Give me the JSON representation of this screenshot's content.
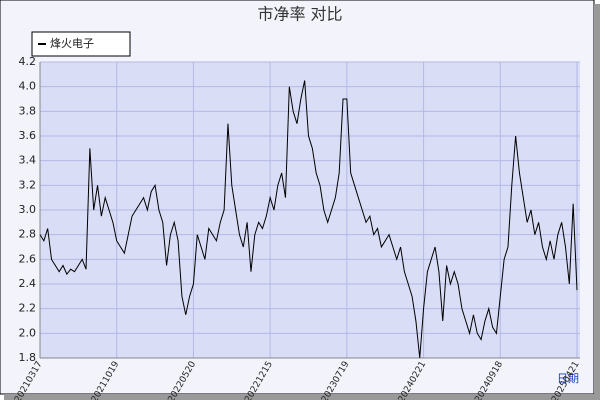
{
  "chart_data": {
    "type": "line",
    "title": "市净率  对比",
    "x_label": "日期",
    "categories": [
      "20210317",
      null,
      null,
      null,
      null,
      null,
      null,
      null,
      null,
      null,
      null,
      null,
      null,
      null,
      null,
      null,
      null,
      null,
      null,
      null,
      "20211019",
      null,
      null,
      null,
      null,
      null,
      null,
      null,
      null,
      null,
      null,
      null,
      null,
      null,
      null,
      null,
      null,
      null,
      null,
      null,
      "20220520",
      null,
      null,
      null,
      null,
      null,
      null,
      null,
      null,
      null,
      null,
      null,
      null,
      null,
      null,
      null,
      null,
      null,
      null,
      null,
      "20221215",
      null,
      null,
      null,
      null,
      null,
      null,
      null,
      null,
      null,
      null,
      null,
      null,
      null,
      null,
      null,
      null,
      null,
      null,
      null,
      "20230719",
      null,
      null,
      null,
      null,
      null,
      null,
      null,
      null,
      null,
      null,
      null,
      null,
      null,
      null,
      null,
      null,
      null,
      null,
      null,
      "20240221",
      null,
      null,
      null,
      null,
      null,
      null,
      null,
      null,
      null,
      null,
      null,
      null,
      null,
      null,
      null,
      null,
      null,
      null,
      null,
      "20240918",
      null,
      null,
      null,
      null,
      null,
      null,
      null,
      null,
      null,
      null,
      null,
      null,
      null,
      null,
      null,
      null,
      null,
      null,
      null,
      "20250421"
    ],
    "series": [
      {
        "name": "烽火电子",
        "color": "#000000",
        "values": [
          2.8,
          2.75,
          2.85,
          2.6,
          2.55,
          2.5,
          2.55,
          2.48,
          2.52,
          2.5,
          2.55,
          2.6,
          2.52,
          3.5,
          3.0,
          3.2,
          2.95,
          3.1,
          3.0,
          2.9,
          2.75,
          2.7,
          2.65,
          2.8,
          2.95,
          3.0,
          3.05,
          3.1,
          3.0,
          3.15,
          3.2,
          3.0,
          2.9,
          2.55,
          2.8,
          2.9,
          2.75,
          2.3,
          2.15,
          2.3,
          2.4,
          2.8,
          2.7,
          2.6,
          2.85,
          2.8,
          2.75,
          2.9,
          3.0,
          3.7,
          3.2,
          3.0,
          2.8,
          2.7,
          2.9,
          2.5,
          2.8,
          2.9,
          2.85,
          2.95,
          3.1,
          3.0,
          3.2,
          3.3,
          3.1,
          4.0,
          3.8,
          3.7,
          3.9,
          4.05,
          3.6,
          3.5,
          3.3,
          3.2,
          3.0,
          2.9,
          3.0,
          3.1,
          3.3,
          3.9,
          3.9,
          3.3,
          3.2,
          3.1,
          3.0,
          2.9,
          2.95,
          2.8,
          2.85,
          2.7,
          2.75,
          2.8,
          2.7,
          2.6,
          2.7,
          2.5,
          2.4,
          2.3,
          2.1,
          1.8,
          2.2,
          2.5,
          2.6,
          2.7,
          2.5,
          2.1,
          2.55,
          2.4,
          2.5,
          2.4,
          2.2,
          2.1,
          2.0,
          2.15,
          2.0,
          1.95,
          2.1,
          2.2,
          2.05,
          2.0,
          2.3,
          2.6,
          2.7,
          3.2,
          3.6,
          3.3,
          3.1,
          2.9,
          3.0,
          2.8,
          2.9,
          2.7,
          2.6,
          2.75,
          2.6,
          2.8,
          2.9,
          2.7,
          2.4,
          3.05,
          2.35
        ]
      }
    ],
    "ylim": [
      1.8,
      4.2
    ],
    "yticks": [
      1.8,
      {
        "value": 2,
        "label": "2.0"
      },
      2.2,
      2.4,
      2.6,
      2.8,
      {
        "value": 3,
        "label": "3.0"
      },
      3.2,
      3.4,
      3.6,
      3.8,
      {
        "value": 4,
        "label": "4.0"
      },
      4.2
    ],
    "grid": true,
    "legend": "top-left"
  }
}
